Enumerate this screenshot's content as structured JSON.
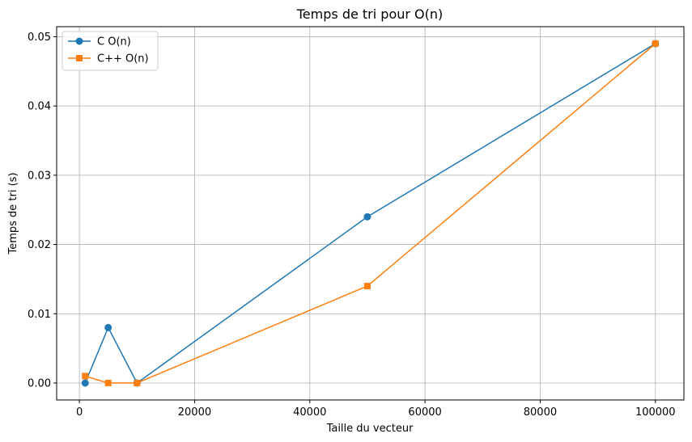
{
  "chart_data": {
    "type": "line",
    "title": "Temps de tri pour O(n)",
    "xlabel": "Taille du vecteur",
    "ylabel": "Temps de tri (s)",
    "xlim": [
      -3950,
      104950
    ],
    "ylim": [
      -0.00245,
      0.05145
    ],
    "xticks": [
      0,
      20000,
      40000,
      60000,
      80000,
      100000
    ],
    "xtick_labels": [
      "0",
      "20000",
      "40000",
      "60000",
      "80000",
      "100000"
    ],
    "yticks": [
      0.0,
      0.01,
      0.02,
      0.03,
      0.04,
      0.05
    ],
    "ytick_labels": [
      "0.00",
      "0.01",
      "0.02",
      "0.03",
      "0.04",
      "0.05"
    ],
    "grid": true,
    "legend": "top-left",
    "x": [
      1000,
      5000,
      10000,
      50000,
      100000
    ],
    "series": [
      {
        "name": "C O(n)",
        "values": [
          0.0,
          0.008,
          0.0,
          0.024,
          0.049
        ],
        "color": "#1f77b4",
        "marker": "circle"
      },
      {
        "name": "C++ O(n)",
        "values": [
          0.001,
          0.0,
          0.0,
          0.014,
          0.049
        ],
        "color": "#ff7f0e",
        "marker": "square"
      }
    ]
  }
}
